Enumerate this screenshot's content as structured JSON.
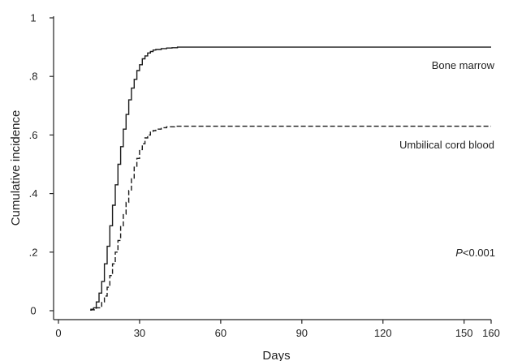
{
  "chart_data": {
    "type": "line",
    "xlabel": "Days",
    "ylabel": "Cumulative incidence",
    "xlim": [
      0,
      160
    ],
    "ylim": [
      0,
      1
    ],
    "xticks": [
      0,
      30,
      60,
      90,
      120,
      150,
      160
    ],
    "xtick_labels": [
      "0",
      "30",
      "60",
      "90",
      "120",
      "150",
      "160"
    ],
    "yticks": [
      0,
      0.2,
      0.4,
      0.6,
      0.8,
      1
    ],
    "ytick_labels": [
      "0",
      ".2",
      ".4",
      ".6",
      ".8",
      "1"
    ],
    "grid": false,
    "annotations": {
      "p_value_symbol": "P",
      "p_value_text": "<0.001"
    },
    "series": [
      {
        "name": "Bone marrow",
        "line_style": "solid",
        "step": true,
        "x": [
          12,
          13,
          14,
          15,
          16,
          17,
          18,
          19,
          20,
          21,
          22,
          23,
          24,
          25,
          26,
          27,
          28,
          29,
          30,
          31,
          32,
          33,
          34,
          35,
          36,
          38,
          40,
          42,
          44,
          160
        ],
        "y": [
          0.005,
          0.01,
          0.03,
          0.06,
          0.1,
          0.16,
          0.22,
          0.29,
          0.36,
          0.43,
          0.5,
          0.56,
          0.62,
          0.67,
          0.72,
          0.76,
          0.79,
          0.82,
          0.84,
          0.86,
          0.87,
          0.88,
          0.885,
          0.89,
          0.892,
          0.895,
          0.897,
          0.898,
          0.9,
          0.9
        ]
      },
      {
        "name": "Umbilical cord blood",
        "line_style": "dashed",
        "step": true,
        "x": [
          12,
          14,
          16,
          17,
          18,
          19,
          20,
          21,
          22,
          23,
          24,
          25,
          26,
          27,
          28,
          29,
          30,
          31,
          32,
          33,
          34,
          35,
          36,
          38,
          40,
          43,
          160
        ],
        "y": [
          0.003,
          0.01,
          0.03,
          0.05,
          0.08,
          0.12,
          0.16,
          0.2,
          0.24,
          0.29,
          0.33,
          0.37,
          0.41,
          0.45,
          0.49,
          0.52,
          0.55,
          0.57,
          0.59,
          0.6,
          0.61,
          0.615,
          0.62,
          0.625,
          0.628,
          0.63,
          0.63
        ]
      }
    ]
  }
}
